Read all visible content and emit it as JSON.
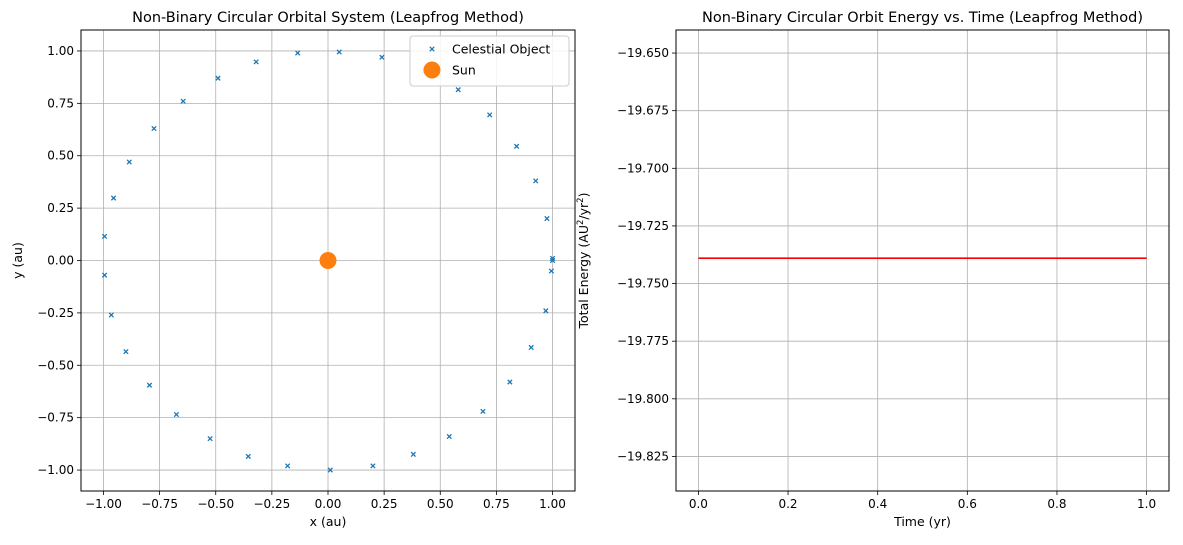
{
  "chart_data": [
    {
      "type": "scatter",
      "title": "Non-Binary Circular Orbital System (Leapfrog Method)",
      "xlabel": "x (au)",
      "ylabel": "y (au)",
      "xlim": [
        -1.1,
        1.1
      ],
      "ylim": [
        -1.1,
        1.1
      ],
      "grid": true,
      "legend_position": "top-right",
      "x_ticks": [
        "−1.00",
        "−0.75",
        "−0.50",
        "−0.25",
        "0.00",
        "0.25",
        "0.50",
        "0.75",
        "1.00"
      ],
      "x_tick_values": [
        -1.0,
        -0.75,
        -0.5,
        -0.25,
        0.0,
        0.25,
        0.5,
        0.75,
        1.0
      ],
      "y_ticks": [
        "−1.00",
        "−0.75",
        "−0.50",
        "−0.25",
        "0.00",
        "0.25",
        "0.50",
        "0.75",
        "1.00"
      ],
      "y_tick_values": [
        -1.0,
        -0.75,
        -0.5,
        -0.25,
        0.0,
        0.25,
        0.5,
        0.75,
        1.0
      ],
      "series": [
        {
          "name": "Celestial Object",
          "marker": "x",
          "color": "#1f77b4",
          "points": [
            [
              1.0,
              0.0
            ],
            [
              1.0,
              0.01
            ],
            [
              0.975,
              0.2
            ],
            [
              0.925,
              0.38
            ],
            [
              0.84,
              0.545
            ],
            [
              0.72,
              0.695
            ],
            [
              0.58,
              0.815
            ],
            [
              0.43,
              0.905
            ],
            [
              0.24,
              0.97
            ],
            [
              0.05,
              0.995
            ],
            [
              -0.135,
              0.99
            ],
            [
              -0.32,
              0.948
            ],
            [
              -0.49,
              0.87
            ],
            [
              -0.645,
              0.76
            ],
            [
              -0.775,
              0.63
            ],
            [
              -0.885,
              0.47
            ],
            [
              -0.955,
              0.298
            ],
            [
              -0.995,
              0.115
            ],
            [
              -0.995,
              -0.07
            ],
            [
              -0.965,
              -0.26
            ],
            [
              -0.9,
              -0.435
            ],
            [
              -0.795,
              -0.595
            ],
            [
              -0.675,
              -0.735
            ],
            [
              -0.525,
              -0.85
            ],
            [
              -0.355,
              -0.935
            ],
            [
              -0.18,
              -0.98
            ],
            [
              0.01,
              -1.0
            ],
            [
              0.2,
              -0.98
            ],
            [
              0.38,
              -0.925
            ],
            [
              0.54,
              -0.84
            ],
            [
              0.69,
              -0.72
            ],
            [
              0.81,
              -0.58
            ],
            [
              0.905,
              -0.415
            ],
            [
              0.97,
              -0.24
            ],
            [
              0.995,
              -0.05
            ]
          ]
        },
        {
          "name": "Sun",
          "marker": "o",
          "color": "#ff7f0e",
          "points": [
            [
              0.0,
              0.0
            ]
          ]
        }
      ]
    },
    {
      "type": "line",
      "title": "Non-Binary Circular Orbit Energy vs. Time (Leapfrog Method)",
      "xlabel": "Time (yr)",
      "ylabel_main": "Total Energy (AU",
      "ylabel_sup1": "2",
      "ylabel_mid": "/yr",
      "ylabel_sup2": "2",
      "ylabel_end": ")",
      "xlim": [
        -0.05,
        1.05
      ],
      "ylim": [
        -19.84,
        -19.64
      ],
      "grid": true,
      "x_ticks": [
        "0.0",
        "0.2",
        "0.4",
        "0.6",
        "0.8",
        "1.0"
      ],
      "x_tick_values": [
        0.0,
        0.2,
        0.4,
        0.6,
        0.8,
        1.0
      ],
      "y_ticks": [
        "−19.650",
        "−19.675",
        "−19.700",
        "−19.725",
        "−19.750",
        "−19.775",
        "−19.800",
        "−19.825"
      ],
      "y_tick_values": [
        -19.65,
        -19.675,
        -19.7,
        -19.725,
        -19.75,
        -19.775,
        -19.8,
        -19.825
      ],
      "series": [
        {
          "color": "#ff0000",
          "x": [
            0.0,
            1.0
          ],
          "y": [
            -19.739,
            -19.739
          ]
        }
      ]
    }
  ]
}
